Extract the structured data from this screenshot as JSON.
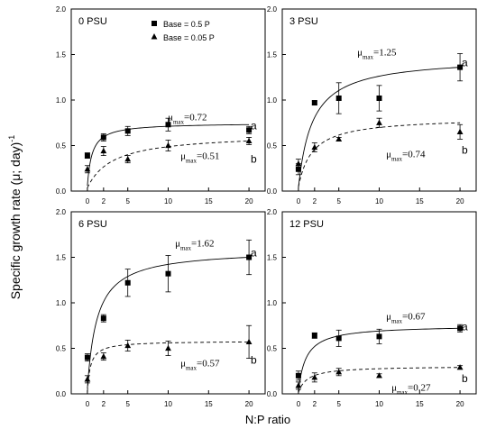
{
  "figure": {
    "ylabel": "Specific growth rate (μ; day)",
    "ylabel_sup": "-1",
    "xlabel": "N:P ratio",
    "legend": {
      "entries": [
        {
          "marker": "square",
          "label": "Base =  0.5 P"
        },
        {
          "marker": "triangle",
          "label": "Base = 0.05 P"
        }
      ]
    }
  },
  "chart_data": [
    {
      "type": "scatter",
      "title": "0 PSU",
      "ylim": [
        0,
        2.0
      ],
      "yticks": [
        "0.0",
        "0.5",
        "1.0",
        "1.5",
        "2.0"
      ],
      "xticks": [
        "0",
        "2",
        "5",
        "10",
        "15",
        "20"
      ],
      "series": [
        {
          "name": "Base =  0.5 P",
          "marker": "square",
          "line": "solid",
          "x": [
            0,
            2,
            5,
            10,
            20
          ],
          "y": [
            0.39,
            0.59,
            0.66,
            0.73,
            0.67
          ],
          "err": [
            0.03,
            0.04,
            0.05,
            0.07,
            0.04
          ],
          "umax": "=0.72",
          "group": "a"
        },
        {
          "name": "Base = 0.05 P",
          "marker": "triangle",
          "line": "dashed",
          "x": [
            0,
            2,
            5,
            10,
            20
          ],
          "y": [
            0.24,
            0.44,
            0.35,
            0.5,
            0.55
          ],
          "err": [
            0.04,
            0.05,
            0.04,
            0.06,
            0.04
          ],
          "umax": "=0.51",
          "group": "b"
        }
      ]
    },
    {
      "type": "scatter",
      "title": "3 PSU",
      "ylim": [
        0,
        2.0
      ],
      "yticks": [
        "0.0",
        "0.5",
        "1.0",
        "1.5",
        "2.0"
      ],
      "xticks": [
        "0",
        "2",
        "5",
        "10",
        "15",
        "20"
      ],
      "series": [
        {
          "name": "Base =  0.5 P",
          "marker": "square",
          "line": "solid",
          "x": [
            0,
            2,
            5,
            10,
            20
          ],
          "y": [
            0.24,
            0.97,
            1.02,
            1.02,
            1.36
          ],
          "err": [
            0.06,
            0.02,
            0.17,
            0.14,
            0.15
          ],
          "umax": "=1.25",
          "group": "a"
        },
        {
          "name": "Base = 0.05 P",
          "marker": "triangle",
          "line": "dashed",
          "x": [
            0,
            2,
            5,
            10,
            20
          ],
          "y": [
            0.3,
            0.48,
            0.57,
            0.75,
            0.65
          ],
          "err": [
            0.05,
            0.05,
            0.02,
            0.05,
            0.08
          ],
          "umax": "=0.74",
          "group": "b"
        }
      ]
    },
    {
      "type": "scatter",
      "title": "6 PSU",
      "ylim": [
        0,
        2.0
      ],
      "yticks": [
        "0.0",
        "0.5",
        "1.0",
        "1.5",
        "2.0"
      ],
      "xticks": [
        "0",
        "2",
        "5",
        "10",
        "15",
        "20"
      ],
      "series": [
        {
          "name": "Base =  0.5 P",
          "marker": "square",
          "line": "solid",
          "x": [
            0,
            2,
            5,
            10,
            20
          ],
          "y": [
            0.4,
            0.83,
            1.22,
            1.32,
            1.5
          ],
          "err": [
            0.04,
            0.04,
            0.15,
            0.2,
            0.19
          ],
          "umax": "=1.62",
          "group": "a"
        },
        {
          "name": "Base = 0.05 P",
          "marker": "triangle",
          "line": "dashed",
          "x": [
            0,
            2,
            5,
            10,
            20
          ],
          "y": [
            0.16,
            0.41,
            0.53,
            0.5,
            0.57
          ],
          "err": [
            0.04,
            0.04,
            0.06,
            0.08,
            0.18
          ],
          "umax": "=0.57",
          "group": "b"
        }
      ]
    },
    {
      "type": "scatter",
      "title": "12 PSU",
      "ylim": [
        0,
        2.0
      ],
      "yticks": [
        "0.0",
        "0.5",
        "1.0",
        "1.5",
        "2.0"
      ],
      "xticks": [
        "0",
        "2",
        "5",
        "10",
        "15",
        "20"
      ],
      "series": [
        {
          "name": "Base =  0.5 P",
          "marker": "square",
          "line": "solid",
          "x": [
            0,
            2,
            5,
            10,
            20
          ],
          "y": [
            0.2,
            0.64,
            0.61,
            0.63,
            0.72
          ],
          "err": [
            0.05,
            0.03,
            0.09,
            0.08,
            0.04
          ],
          "umax": "=0.67",
          "group": "a"
        },
        {
          "name": "Base = 0.05 P",
          "marker": "triangle",
          "line": "dashed",
          "x": [
            0,
            2,
            5,
            10,
            20
          ],
          "y": [
            0.09,
            0.18,
            0.24,
            0.2,
            0.29
          ],
          "err": [
            0.04,
            0.05,
            0.04,
            0.02,
            0.02
          ],
          "umax": "=0.27",
          "group": "b"
        }
      ]
    }
  ]
}
